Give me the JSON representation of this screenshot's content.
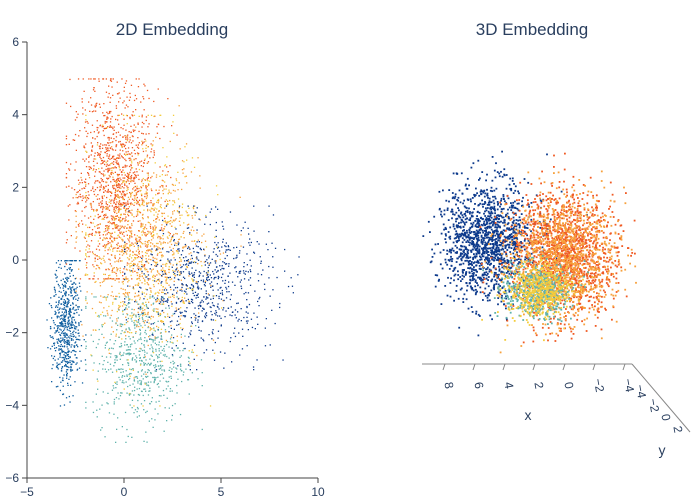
{
  "chart_data": [
    {
      "type": "scatter",
      "title": "2D Embedding",
      "xlabel": "",
      "ylabel": "",
      "xlim": [
        -5,
        10
      ],
      "ylim": [
        -6,
        6
      ],
      "xticks": [
        -5,
        0,
        5,
        10
      ],
      "xtick_labels": [
        "−5",
        "0",
        "5",
        "10"
      ],
      "yticks": [
        6,
        4,
        2,
        0,
        -2,
        -4,
        -6
      ],
      "ytick_labels": [
        "6",
        "4",
        "2",
        "0",
        "−2",
        "−4",
        "−6"
      ],
      "grid": false,
      "legend": "none",
      "clusters": [
        {
          "color": "#f05a23",
          "center": [
            -0.5,
            2.2
          ],
          "spread": [
            1.1,
            1.3
          ],
          "count": 1100,
          "approx_range_x": [
            -3,
            3
          ],
          "approx_range_y": [
            -0.5,
            5
          ]
        },
        {
          "color": "#f7a13c",
          "center": [
            1.0,
            0.3
          ],
          "spread": [
            1.5,
            1.2
          ],
          "count": 900,
          "approx_range_x": [
            -2.5,
            6
          ],
          "approx_range_y": [
            -3.5,
            4.5
          ]
        },
        {
          "color": "#0d3a8c",
          "center": [
            4.0,
            -0.7
          ],
          "spread": [
            1.8,
            0.9
          ],
          "count": 700,
          "approx_range_x": [
            0,
            9
          ],
          "approx_range_y": [
            -3,
            1.5
          ]
        },
        {
          "color": "#0f5fa0",
          "center": [
            -3.0,
            -1.8
          ],
          "spread": [
            0.35,
            0.9
          ],
          "count": 600,
          "approx_range_x": [
            -4,
            -2
          ],
          "approx_range_y": [
            -4,
            0
          ]
        },
        {
          "color": "#5fb2ab",
          "center": [
            0.8,
            -2.7
          ],
          "spread": [
            1.2,
            0.9
          ],
          "count": 600,
          "approx_range_x": [
            -2,
            4
          ],
          "approx_range_y": [
            -5,
            -1
          ]
        },
        {
          "color": "#f3cd3e",
          "center": [
            0.8,
            0.5
          ],
          "spread": [
            1.6,
            1.8
          ],
          "count": 450,
          "approx_range_x": [
            -2,
            5
          ],
          "approx_range_y": [
            -4,
            4
          ]
        }
      ]
    },
    {
      "type": "scatter3d",
      "title": "3D Embedding",
      "xlabel": "x",
      "ylabel": "y",
      "x_tick_labels": [
        "8",
        "6",
        "4",
        "2",
        "0",
        "−2",
        "−4"
      ],
      "y_tick_labels": [
        "−4",
        "−2",
        "0",
        "2"
      ],
      "grid": false,
      "legend": "none",
      "clusters": [
        {
          "color": "#0d3a8c",
          "side": "left",
          "count": 1400
        },
        {
          "color": "#f05a23",
          "side": "right",
          "count": 1500
        },
        {
          "color": "#f7a13c",
          "side": "right",
          "count": 1000
        },
        {
          "color": "#5fb2ab",
          "side": "center",
          "count": 500
        },
        {
          "color": "#f3cd3e",
          "side": "center",
          "count": 500
        }
      ]
    }
  ]
}
